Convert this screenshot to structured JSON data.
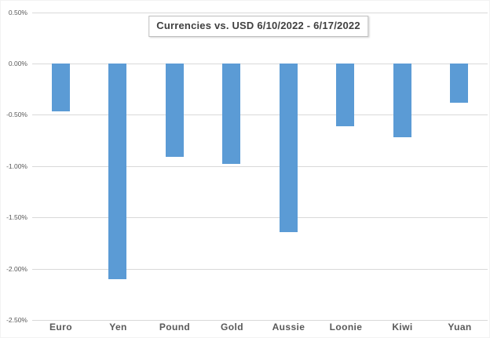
{
  "chart_data": {
    "type": "bar",
    "title": "Currencies vs. USD 6/10/2022 - 6/17/2022",
    "categories": [
      "Euro",
      "Yen",
      "Pound",
      "Gold",
      "Aussie",
      "Loonie",
      "Kiwi",
      "Yuan"
    ],
    "values": [
      -0.47,
      -2.1,
      -0.91,
      -0.98,
      -1.64,
      -0.61,
      -0.72,
      -0.38
    ],
    "unit": "%",
    "xlabel": "",
    "ylabel": "",
    "ylim": [
      -2.5,
      0.5
    ],
    "y_tick_step": 0.5,
    "y_ticks": [
      {
        "value": 0.5,
        "label": "0.50%"
      },
      {
        "value": 0.0,
        "label": "0.00%"
      },
      {
        "value": -0.5,
        "label": "-0.50%"
      },
      {
        "value": -1.0,
        "label": "-1.00%"
      },
      {
        "value": -1.5,
        "label": "-1.50%"
      },
      {
        "value": -2.0,
        "label": "-2.00%"
      },
      {
        "value": -2.5,
        "label": "-2.50%"
      }
    ],
    "grid": true,
    "legend": "none",
    "colors": {
      "bar": "#5B9BD5",
      "gridline": "#D9D9D9",
      "tick_label": "#595959",
      "category_label": "#595959",
      "title_text": "#404040",
      "title_border": "#BFBFBF",
      "background": "#FFFFFF"
    }
  }
}
